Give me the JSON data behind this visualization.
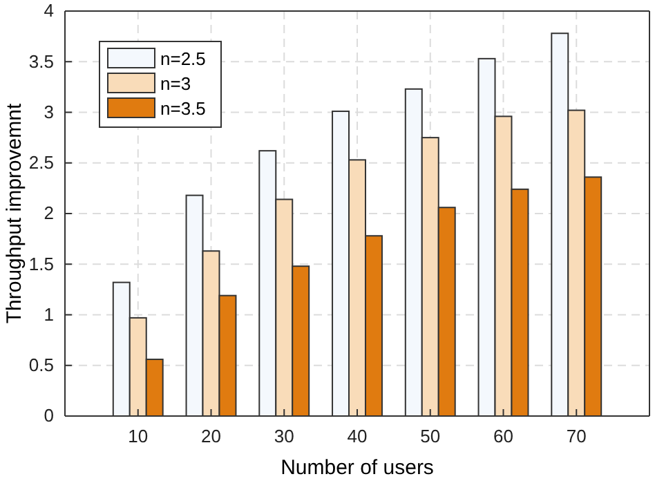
{
  "chart_data": {
    "type": "bar",
    "xlabel": "Number of users",
    "ylabel": "Throughput improvemnt",
    "x": [
      10,
      20,
      30,
      40,
      50,
      60,
      70
    ],
    "series": [
      {
        "name": "n=2.5",
        "color": "#f4f8fd",
        "values": [
          1.32,
          2.18,
          2.62,
          3.01,
          3.23,
          3.53,
          3.78
        ]
      },
      {
        "name": "n=3",
        "color": "#f9dcb9",
        "values": [
          0.97,
          1.63,
          2.14,
          2.53,
          2.75,
          2.96,
          3.02
        ]
      },
      {
        "name": "n=3.5",
        "color": "#e07b10",
        "values": [
          0.56,
          1.19,
          1.48,
          1.78,
          2.06,
          2.24,
          2.36
        ]
      }
    ],
    "xlim": [
      0,
      80
    ],
    "xticks": [
      10,
      20,
      30,
      40,
      50,
      60,
      70
    ],
    "ylim": [
      0,
      4
    ],
    "yticks": [
      0,
      0.5,
      1,
      1.5,
      2,
      2.5,
      3,
      3.5,
      4
    ],
    "grid": true,
    "legend": "top left"
  }
}
